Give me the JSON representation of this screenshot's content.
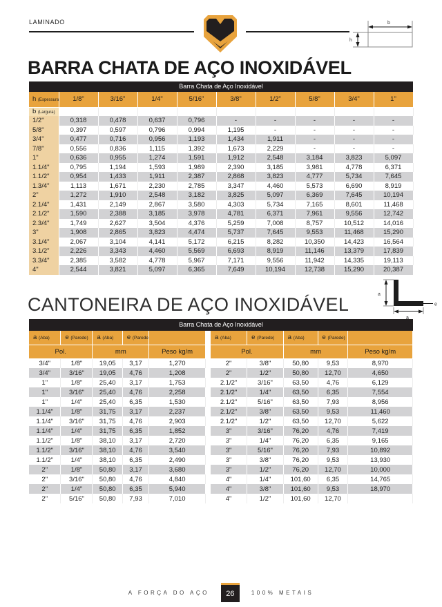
{
  "header": {
    "section_label": "LAMINADO",
    "flat_bar_diagram": {
      "width_label": "b",
      "height_label": "h"
    }
  },
  "sections": [
    {
      "title": "BARRA CHATA DE AÇO INOXIDÁVEL",
      "table": {
        "caption": "Barra Chata de Aço Inoxidável",
        "corner": {
          "main": "h",
          "sub": "(Espessura)"
        },
        "row_group": {
          "main": "b",
          "sub": "(Largura)"
        },
        "col_headers": [
          "1/8\"",
          "3/16\"",
          "1/4\"",
          "5/16\"",
          "3/8\"",
          "1/2\"",
          "5/8\"",
          "3/4\"",
          "1\""
        ],
        "rows": [
          {
            "label": "1/2\"",
            "values": [
              "0,318",
              "0,478",
              "0,637",
              "0,796",
              "-",
              "-",
              "-",
              "-",
              "-"
            ]
          },
          {
            "label": "5/8\"",
            "values": [
              "0,397",
              "0,597",
              "0,796",
              "0,994",
              "1,195",
              "-",
              "-",
              "-",
              "-"
            ]
          },
          {
            "label": "3/4\"",
            "values": [
              "0,477",
              "0,716",
              "0,956",
              "1,193",
              "1,434",
              "1,911",
              "-",
              "-",
              "-"
            ]
          },
          {
            "label": "7/8\"",
            "values": [
              "0,556",
              "0,836",
              "1,115",
              "1,392",
              "1,673",
              "2,229",
              "-",
              "-",
              "-"
            ]
          },
          {
            "label": "1\"",
            "values": [
              "0,636",
              "0,955",
              "1,274",
              "1,591",
              "1,912",
              "2,548",
              "3,184",
              "3,823",
              "5,097"
            ]
          },
          {
            "label": "1.1/4\"",
            "values": [
              "0,795",
              "1,194",
              "1,593",
              "1,989",
              "2,390",
              "3,185",
              "3,981",
              "4,778",
              "6,371"
            ]
          },
          {
            "label": "1.1/2\"",
            "values": [
              "0,954",
              "1,433",
              "1,911",
              "2,387",
              "2,868",
              "3,823",
              "4,777",
              "5,734",
              "7,645"
            ]
          },
          {
            "label": "1.3/4\"",
            "values": [
              "1,113",
              "1,671",
              "2,230",
              "2,785",
              "3,347",
              "4,460",
              "5,573",
              "6,690",
              "8,919"
            ]
          },
          {
            "label": "2\"",
            "values": [
              "1,272",
              "1,910",
              "2,548",
              "3,182",
              "3,825",
              "5,097",
              "6,369",
              "7,645",
              "10,194"
            ]
          },
          {
            "label": "2.1/4\"",
            "values": [
              "1,431",
              "2,149",
              "2,867",
              "3,580",
              "4,303",
              "5,734",
              "7,165",
              "8,601",
              "11,468"
            ]
          },
          {
            "label": "2.1/2\"",
            "values": [
              "1,590",
              "2,388",
              "3,185",
              "3,978",
              "4,781",
              "6,371",
              "7,961",
              "9,556",
              "12,742"
            ]
          },
          {
            "label": "2.3/4\"",
            "values": [
              "1,749",
              "2,627",
              "3,504",
              "4,376",
              "5,259",
              "7,008",
              "8,757",
              "10,512",
              "14,016"
            ]
          },
          {
            "label": "3\"",
            "values": [
              "1,908",
              "2,865",
              "3,823",
              "4,474",
              "5,737",
              "7,645",
              "9,553",
              "11,468",
              "15,290"
            ]
          },
          {
            "label": "3.1/4\"",
            "values": [
              "2,067",
              "3,104",
              "4,141",
              "5,172",
              "6,215",
              "8,282",
              "10,350",
              "14,423",
              "16,564"
            ]
          },
          {
            "label": "3.1/2\"",
            "values": [
              "2,226",
              "3,343",
              "4,460",
              "5,569",
              "6,693",
              "8,919",
              "11,146",
              "13,379",
              "17,839"
            ]
          },
          {
            "label": "3.3/4\"",
            "values": [
              "2,385",
              "3,582",
              "4,778",
              "5,967",
              "7,171",
              "9,556",
              "11,942",
              "14,335",
              "19,113"
            ]
          },
          {
            "label": "4\"",
            "values": [
              "2,544",
              "3,821",
              "5,097",
              "6,365",
              "7,649",
              "10,194",
              "12,738",
              "15,290",
              "20,387"
            ]
          }
        ]
      }
    },
    {
      "title": "CANTONEIRA DE AÇO INOXIDÁVEL",
      "diagram": {
        "leg_left": "a",
        "leg_bottom": "a",
        "thickness": "e"
      },
      "table": {
        "caption": "Barra Chata de Aço Inoxidável",
        "group_headers": [
          {
            "main": "a",
            "sub": "(Aba)"
          },
          {
            "main": "e",
            "sub": "(Parede)"
          },
          {
            "main": "a",
            "sub": "(Aba)"
          },
          {
            "main": "e",
            "sub": "(Parede)"
          }
        ],
        "unit_headers": [
          "Pol.",
          "mm",
          "Peso kg/m"
        ],
        "left_rows": [
          [
            "3/4\"",
            "1/8\"",
            "19,05",
            "3,17",
            "1,270"
          ],
          [
            "3/4\"",
            "3/16\"",
            "19,05",
            "4,76",
            "1,208"
          ],
          [
            "1\"",
            "1/8\"",
            "25,40",
            "3,17",
            "1,753"
          ],
          [
            "1\"",
            "3/16\"",
            "25,40",
            "4,76",
            "2,258"
          ],
          [
            "1\"",
            "1/4\"",
            "25,40",
            "6,35",
            "1,530"
          ],
          [
            "1.1/4\"",
            "1/8\"",
            "31,75",
            "3,17",
            "2,237"
          ],
          [
            "1.1/4\"",
            "3/16\"",
            "31,75",
            "4,76",
            "2,903"
          ],
          [
            "1.1/4\"",
            "1/4\"",
            "31,75",
            "6,35",
            "1,852"
          ],
          [
            "1.1/2\"",
            "1/8\"",
            "38,10",
            "3,17",
            "2,720"
          ],
          [
            "1.1/2\"",
            "3/16\"",
            "38,10",
            "4,76",
            "3,540"
          ],
          [
            "1.1/2\"",
            "1/4\"",
            "38,10",
            "6,35",
            "2,490"
          ],
          [
            "2\"",
            "1/8\"",
            "50,80",
            "3,17",
            "3,680"
          ],
          [
            "2\"",
            "3/16\"",
            "50,80",
            "4,76",
            "4,840"
          ],
          [
            "2\"",
            "1/4\"",
            "50,80",
            "6,35",
            "5,940"
          ],
          [
            "2\"",
            "5/16\"",
            "50,80",
            "7,93",
            "7,010"
          ]
        ],
        "right_rows": [
          [
            "2\"",
            "3/8\"",
            "50,80",
            "9,53",
            "8,970"
          ],
          [
            "2\"",
            "1/2\"",
            "50,80",
            "12,70",
            "4,650"
          ],
          [
            "2.1/2\"",
            "3/16\"",
            "63,50",
            "4,76",
            "6,129"
          ],
          [
            "2.1/2\"",
            "1/4\"",
            "63,50",
            "6,35",
            "7,554"
          ],
          [
            "2.1/2\"",
            "5/16\"",
            "63,50",
            "7,93",
            "8,956"
          ],
          [
            "2.1/2\"",
            "3/8\"",
            "63,50",
            "9,53",
            "11,460"
          ],
          [
            "2.1/2\"",
            "1/2\"",
            "63,50",
            "12,70",
            "5,622"
          ],
          [
            "3\"",
            "3/16\"",
            "76,20",
            "4,76",
            "7,419"
          ],
          [
            "3\"",
            "1/4\"",
            "76,20",
            "6,35",
            "9,165"
          ],
          [
            "3\"",
            "5/16\"",
            "76,20",
            "7,93",
            "10,892"
          ],
          [
            "3\"",
            "3/8\"",
            "76,20",
            "9,53",
            "13,930"
          ],
          [
            "3\"",
            "1/2\"",
            "76,20",
            "12,70",
            "10,000"
          ],
          [
            "4\"",
            "1/4\"",
            "101,60",
            "6,35",
            "14,765"
          ],
          [
            "4\"",
            "3/8\"",
            "101,60",
            "9,53",
            "18,970"
          ],
          [
            "4\"",
            "1/2\"",
            "101,60",
            "12,70",
            ""
          ]
        ]
      }
    }
  ],
  "footer": {
    "left_text": "A FORÇA DO AÇO",
    "page_number": "26",
    "right_text": "100% METAIS"
  },
  "colors": {
    "accent_gold": "#E8A33D",
    "dark": "#221E1F",
    "row_gray": "#D2D2D4",
    "label_tan": "#EFD2A2",
    "label_tan_light": "#F5DFB3"
  }
}
